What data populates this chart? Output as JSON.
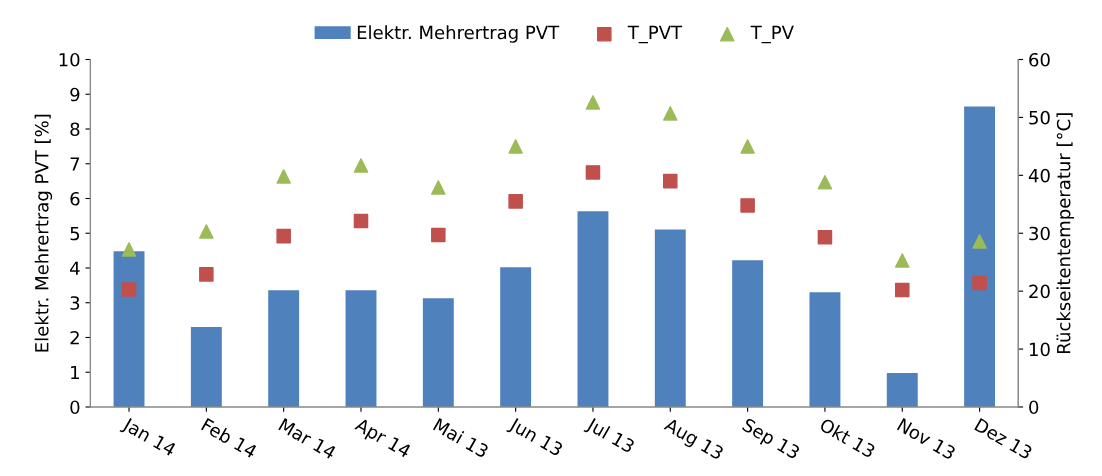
{
  "chart_data": {
    "type": "bar",
    "categories": [
      "Jan 14",
      "Feb 14",
      "Mar 14",
      "Apr 14",
      "Mai 13",
      "Jun 13",
      "Jul 13",
      "Aug 13",
      "Sep 13",
      "Okt 13",
      "Nov 13",
      "Dez 13"
    ],
    "ylabel": "Elektr. Mehrertrag PVT [%]",
    "y2label": "Rückseitentemperatur [°C]",
    "ylim": [
      0,
      10
    ],
    "yticks": [
      0,
      1,
      2,
      3,
      4,
      5,
      6,
      7,
      8,
      9,
      10
    ],
    "y2lim": [
      0,
      60
    ],
    "y2ticks": [
      0,
      10,
      20,
      30,
      40,
      50,
      60
    ],
    "legend": "top",
    "grid": false,
    "series": [
      {
        "name": "Elektr. Mehrertrag PVT",
        "color": "#4f81bd",
        "values": [
          4.48,
          2.3,
          3.36,
          3.36,
          3.13,
          4.02,
          5.63,
          5.11,
          4.22,
          3.3,
          0.98,
          8.65
        ]
      },
      {
        "name": "T_PVT",
        "type": "scatter",
        "axis": "y2",
        "marker": "square",
        "color": "#c0504d",
        "values": [
          20.3,
          22.9,
          29.5,
          32.1,
          29.7,
          35.5,
          40.5,
          39.0,
          34.8,
          29.3,
          20.2,
          21.4
        ]
      },
      {
        "name": "T_PV",
        "type": "scatter",
        "axis": "y2",
        "marker": "triangle",
        "color": "#9bbb59",
        "values": [
          27.2,
          30.3,
          39.8,
          41.7,
          37.9,
          45.0,
          52.6,
          50.7,
          45.0,
          38.8,
          25.3,
          28.6
        ]
      }
    ]
  }
}
